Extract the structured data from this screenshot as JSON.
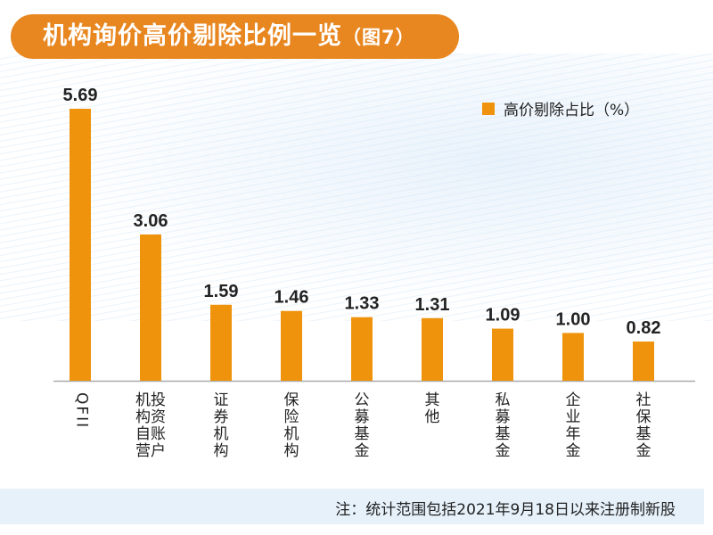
{
  "title": {
    "main": "机构询价高价剔除比例一览",
    "sub": "（图7）"
  },
  "colors": {
    "bar": "#f0930c",
    "title_bg": "#e8861f",
    "footer_bg": "#e6f1fa",
    "axis": "#aaaaaa"
  },
  "chart_data": {
    "type": "bar",
    "title": "机构询价高价剔除比例一览（图7）",
    "categories": [
      "QFII",
      "机投\n构资\n自账\n营户",
      "证\n券\n机\n构",
      "保\n险\n机\n构",
      "公\n募\n基\n金",
      "其\n他",
      "私\n募\n基\n金",
      "企\n业\n年\n金",
      "社\n保\n基\n金"
    ],
    "values": [
      5.69,
      3.06,
      1.59,
      1.46,
      1.33,
      1.31,
      1.09,
      1.0,
      0.82
    ],
    "value_labels": [
      "5.69",
      "3.06",
      "1.59",
      "1.46",
      "1.33",
      "1.31",
      "1.09",
      "1.00",
      "0.82"
    ],
    "legend": [
      "高价剔除占比（%）"
    ],
    "legend_position": "top-right",
    "xlabel": "",
    "ylabel": "",
    "ylim": [
      0,
      5.69
    ],
    "grid": false
  },
  "footer": {
    "note": "注：统计范围包括2021年9月18日以来注册制新股"
  }
}
